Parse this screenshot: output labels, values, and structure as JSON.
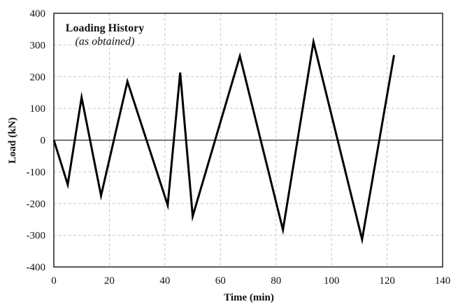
{
  "chart_data": {
    "type": "line",
    "title": "Loading History",
    "subtitle": "(as obtained)",
    "xlabel": "Time (min)",
    "ylabel": "Load (kN)",
    "xlim": [
      0,
      140
    ],
    "ylim": [
      -400,
      400
    ],
    "xticks": [
      "0",
      "20",
      "40",
      "60",
      "80",
      "100",
      "120",
      "140"
    ],
    "yticks": [
      "400",
      "300",
      "200",
      "100",
      "0",
      "-100",
      "-200",
      "-300",
      "-400"
    ],
    "grid": true,
    "legend": "none",
    "zero_line": true,
    "series": [
      {
        "color": "#000000",
        "x": [
          0,
          5,
          10,
          17,
          26.5,
          41,
          45.5,
          50,
          67,
          82.5,
          93.5,
          111,
          122.5
        ],
        "y": [
          0,
          -140,
          135,
          -175,
          185,
          -205,
          213,
          -240,
          265,
          -283,
          310,
          -313,
          268
        ]
      }
    ]
  }
}
